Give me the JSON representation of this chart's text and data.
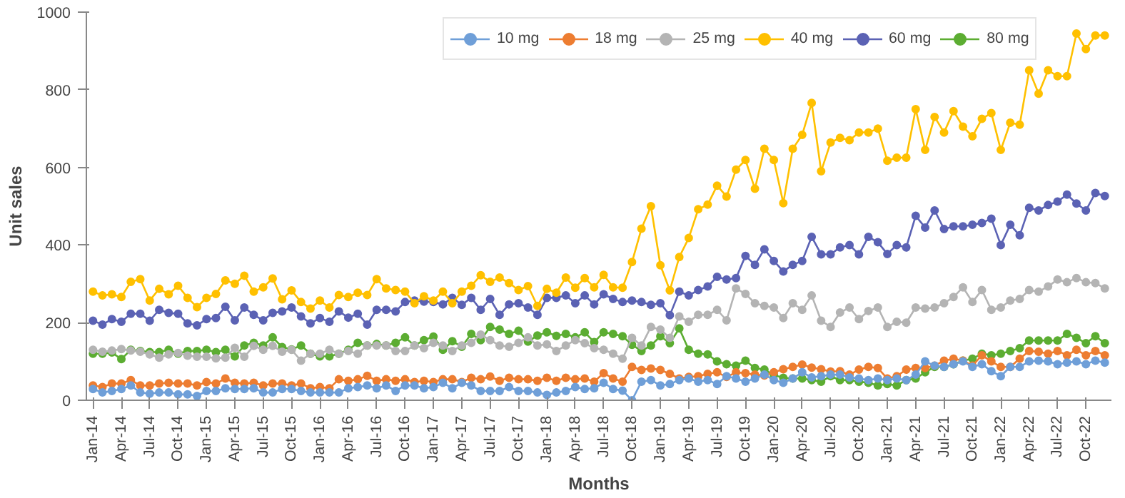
{
  "chart_data": {
    "type": "line",
    "xlabel": "Months",
    "ylabel": "Unit sales",
    "categories": [
      "Jan-14",
      null,
      null,
      "Apr-14",
      null,
      null,
      "Jul-14",
      null,
      null,
      "Oct-14",
      null,
      null,
      "Jan-15",
      null,
      null,
      "Apr-15",
      null,
      null,
      "Jul-15",
      null,
      null,
      "Oct-15",
      null,
      null,
      "Jan-16",
      null,
      null,
      "Apr-16",
      null,
      null,
      "Jul-16",
      null,
      null,
      "Oct-16",
      null,
      null,
      "Jan-17",
      null,
      null,
      "Apr-17",
      null,
      null,
      "Jul-17",
      null,
      null,
      "Oct-17",
      null,
      null,
      "Jan-18",
      null,
      null,
      "Apr-18",
      null,
      null,
      "Jul-18",
      null,
      null,
      "Oct-18",
      null,
      null,
      "Jan-19",
      null,
      null,
      "Apr-19",
      null,
      null,
      "Jul-19",
      null,
      null,
      "Oct-19",
      null,
      null,
      "Jan-20",
      null,
      null,
      "Apr-20",
      null,
      null,
      "Jul-20",
      null,
      null,
      "Oct-20",
      null,
      null,
      "Jan-21",
      null,
      null,
      "Apr-21",
      null,
      null,
      "Jul-21",
      null,
      null,
      "Oct-21",
      null,
      null,
      "Jan-22",
      null,
      null,
      "Apr-22",
      null,
      null,
      "Jul-22",
      null,
      null,
      "Oct-22",
      null,
      null
    ],
    "ylim": [
      0,
      1000
    ],
    "yticks": [
      0,
      200,
      400,
      600,
      800,
      1000
    ],
    "grid": false,
    "legend": "top right",
    "marker": "circle",
    "line_style": "solid",
    "series": [
      {
        "name": "10 mg",
        "color": "#6f9fd8",
        "values": [
          29,
          20,
          24,
          29,
          38,
          20,
          17,
          20,
          20,
          15,
          15,
          11,
          24,
          24,
          31,
          29,
          29,
          31,
          20,
          20,
          29,
          29,
          24,
          20,
          20,
          20,
          20,
          31,
          34,
          38,
          31,
          38,
          24,
          38,
          38,
          31,
          34,
          45,
          31,
          45,
          38,
          24,
          24,
          24,
          34,
          24,
          24,
          20,
          14,
          20,
          24,
          34,
          29,
          31,
          45,
          29,
          25,
          0,
          48,
          52,
          38,
          42,
          52,
          56,
          48,
          52,
          42,
          62,
          56,
          48,
          56,
          66,
          52,
          45,
          56,
          72,
          59,
          62,
          66,
          66,
          59,
          56,
          52,
          56,
          52,
          56,
          52,
          66,
          100,
          89,
          86,
          93,
          100,
          86,
          93,
          75,
          62,
          86,
          86,
          100,
          102,
          100,
          93,
          97,
          100,
          93,
          102,
          97
        ]
      },
      {
        "name": "18 mg",
        "color": "#ed7d31",
        "values": [
          38,
          34,
          43,
          43,
          52,
          38,
          38,
          43,
          45,
          43,
          43,
          38,
          47,
          43,
          56,
          45,
          43,
          45,
          38,
          43,
          43,
          38,
          43,
          31,
          34,
          31,
          54,
          50,
          54,
          63,
          50,
          54,
          50,
          54,
          47,
          50,
          47,
          54,
          54,
          47,
          58,
          54,
          61,
          50,
          58,
          54,
          54,
          50,
          58,
          50,
          58,
          54,
          56,
          48,
          70,
          56,
          48,
          86,
          78,
          82,
          78,
          68,
          56,
          60,
          62,
          68,
          72,
          60,
          72,
          70,
          66,
          64,
          72,
          80,
          86,
          92,
          84,
          80,
          74,
          75,
          66,
          79,
          86,
          83,
          56,
          62,
          79,
          83,
          83,
          89,
          102,
          107,
          102,
          89,
          116,
          100,
          86,
          86,
          107,
          127,
          125,
          120,
          127,
          116,
          130,
          116,
          127,
          116
        ]
      },
      {
        "name": "25 mg",
        "color": "#b4b4b4",
        "values": [
          130,
          125,
          128,
          132,
          128,
          125,
          118,
          110,
          118,
          122,
          115,
          112,
          112,
          108,
          110,
          135,
          112,
          140,
          130,
          140,
          125,
          130,
          102,
          120,
          120,
          130,
          120,
          127,
          120,
          141,
          141,
          141,
          127,
          127,
          141,
          134,
          148,
          141,
          127,
          141,
          148,
          169,
          155,
          141,
          138,
          148,
          162,
          141,
          144,
          127,
          141,
          155,
          147,
          134,
          130,
          120,
          107,
          161,
          141,
          189,
          182,
          161,
          216,
          202,
          220,
          220,
          233,
          206,
          288,
          274,
          250,
          243,
          239,
          212,
          250,
          233,
          270,
          205,
          189,
          226,
          239,
          209,
          230,
          239,
          189,
          202,
          200,
          239,
          236,
          239,
          250,
          266,
          291,
          253,
          284,
          233,
          239,
          257,
          261,
          284,
          280,
          293,
          311,
          304,
          315,
          304,
          302,
          288
        ]
      },
      {
        "name": "40 mg",
        "color": "#ffc000",
        "values": [
          280,
          270,
          273,
          266,
          305,
          312,
          257,
          287,
          273,
          295,
          264,
          240,
          264,
          274,
          309,
          300,
          321,
          280,
          291,
          314,
          260,
          283,
          253,
          236,
          257,
          239,
          271,
          266,
          277,
          271,
          312,
          288,
          284,
          280,
          250,
          268,
          257,
          280,
          250,
          280,
          295,
          322,
          305,
          316,
          302,
          284,
          294,
          243,
          287,
          277,
          316,
          290,
          315,
          291,
          323,
          291,
          290,
          356,
          442,
          500,
          348,
          283,
          369,
          418,
          492,
          504,
          553,
          525,
          594,
          619,
          545,
          648,
          619,
          508,
          648,
          684,
          766,
          590,
          664,
          676,
          670,
          690,
          690,
          700,
          617,
          625,
          625,
          750,
          645,
          730,
          690,
          745,
          705,
          680,
          725,
          740,
          645,
          715,
          710,
          850,
          790,
          850,
          835,
          835,
          945,
          905,
          940,
          940
        ]
      },
      {
        "name": "60 mg",
        "color": "#5b62b4",
        "values": [
          205,
          195,
          209,
          202,
          223,
          223,
          205,
          233,
          225,
          223,
          198,
          193,
          209,
          212,
          241,
          206,
          239,
          220,
          206,
          225,
          229,
          239,
          216,
          198,
          212,
          202,
          229,
          213,
          223,
          195,
          233,
          233,
          229,
          253,
          257,
          254,
          253,
          247,
          264,
          246,
          264,
          233,
          261,
          220,
          247,
          250,
          239,
          220,
          264,
          264,
          270,
          250,
          270,
          247,
          273,
          261,
          253,
          257,
          253,
          246,
          250,
          219,
          280,
          270,
          284,
          293,
          318,
          311,
          315,
          372,
          349,
          389,
          359,
          332,
          349,
          359,
          421,
          376,
          376,
          394,
          400,
          376,
          421,
          407,
          377,
          400,
          394,
          475,
          445,
          489,
          441,
          448,
          448,
          452,
          457,
          468,
          400,
          452,
          425,
          496,
          489,
          503,
          512,
          530,
          507,
          489,
          534,
          526
        ]
      },
      {
        "name": "80 mg",
        "color": "#5cad32",
        "values": [
          120,
          120,
          123,
          106,
          130,
          127,
          124,
          124,
          130,
          120,
          127,
          127,
          130,
          124,
          130,
          113,
          141,
          148,
          141,
          162,
          137,
          131,
          141,
          120,
          113,
          113,
          120,
          130,
          148,
          141,
          145,
          141,
          148,
          162,
          141,
          155,
          164,
          130,
          152,
          138,
          171,
          155,
          189,
          182,
          171,
          179,
          151,
          167,
          175,
          166,
          171,
          162,
          175,
          150,
          175,
          171,
          165,
          143,
          127,
          141,
          165,
          147,
          185,
          130,
          120,
          118,
          100,
          93,
          89,
          102,
          83,
          79,
          65,
          58,
          56,
          56,
          52,
          48,
          62,
          52,
          52,
          48,
          45,
          38,
          42,
          38,
          52,
          56,
          72,
          86,
          86,
          93,
          102,
          107,
          120,
          116,
          120,
          127,
          134,
          154,
          154,
          154,
          154,
          171,
          161,
          147,
          165,
          147
        ]
      }
    ]
  }
}
